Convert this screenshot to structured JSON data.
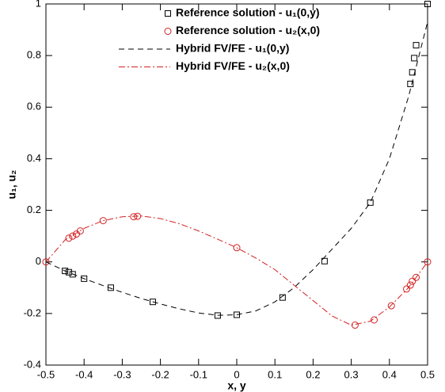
{
  "chart_data": {
    "type": "line",
    "xlabel": "x, y",
    "ylabel": "u₁, u₂",
    "xlim": [
      -0.5,
      0.5
    ],
    "xticks": [
      -0.5,
      -0.4,
      -0.3,
      -0.2,
      -0.1,
      0,
      0.1,
      0.2,
      0.3,
      0.4,
      0.5
    ],
    "ylim": [
      -0.4,
      1
    ],
    "yticks": [
      -0.4,
      -0.2,
      0,
      0.2,
      0.4,
      0.6,
      0.8,
      1
    ],
    "legend": "top",
    "series": [
      {
        "name": "Reference solution - u₁(0,y)",
        "color": "#000000",
        "marker": "square",
        "x": [
          -0.45,
          -0.44,
          -0.43,
          -0.4,
          -0.33,
          -0.22,
          -0.05,
          0,
          0.12,
          0.23,
          0.35,
          0.455,
          0.46,
          0.465,
          0.47,
          0.5
        ],
        "values": [
          -0.035,
          -0.04,
          -0.048,
          -0.065,
          -0.1,
          -0.155,
          -0.208,
          -0.205,
          -0.138,
          0.003,
          0.23,
          0.69,
          0.735,
          0.79,
          0.84,
          1.0
        ]
      },
      {
        "name": "Reference solution - u₂(x,0)",
        "color": "#d42020",
        "marker": "circle",
        "x": [
          -0.5,
          -0.44,
          -0.43,
          -0.42,
          -0.41,
          -0.35,
          -0.27,
          -0.26,
          0,
          0.31,
          0.36,
          0.405,
          0.445,
          0.455,
          0.46,
          0.47,
          0.5
        ],
        "values": [
          0,
          0.092,
          0.1,
          0.108,
          0.12,
          0.16,
          0.175,
          0.177,
          0.055,
          -0.245,
          -0.225,
          -0.17,
          -0.105,
          -0.09,
          -0.075,
          -0.06,
          0
        ]
      },
      {
        "name": "Hybrid FV/FE - u₁(0,y)",
        "color": "#000000",
        "dash": "7,5",
        "x": [
          -0.5,
          -0.45,
          -0.4,
          -0.35,
          -0.3,
          -0.25,
          -0.2,
          -0.15,
          -0.1,
          -0.05,
          0,
          0.05,
          0.1,
          0.15,
          0.2,
          0.25,
          0.3,
          0.35,
          0.4,
          0.45,
          0.5
        ],
        "values": [
          0,
          -0.035,
          -0.065,
          -0.092,
          -0.118,
          -0.142,
          -0.163,
          -0.182,
          -0.198,
          -0.207,
          -0.205,
          -0.19,
          -0.155,
          -0.1,
          -0.03,
          0.05,
          0.13,
          0.23,
          0.4,
          0.64,
          0.93
        ]
      },
      {
        "name": "Hybrid FV/FE - u₂(x,0)",
        "color": "#d42020",
        "dash": "8,3,2,3",
        "x": [
          -0.5,
          -0.45,
          -0.4,
          -0.35,
          -0.3,
          -0.25,
          -0.2,
          -0.15,
          -0.1,
          -0.05,
          0,
          0.05,
          0.1,
          0.15,
          0.2,
          0.25,
          0.3,
          0.35,
          0.4,
          0.45,
          0.5
        ],
        "values": [
          0,
          0.085,
          0.13,
          0.16,
          0.175,
          0.178,
          0.168,
          0.148,
          0.12,
          0.088,
          0.055,
          0.015,
          -0.03,
          -0.09,
          -0.15,
          -0.21,
          -0.245,
          -0.23,
          -0.175,
          -0.1,
          0
        ]
      }
    ]
  }
}
